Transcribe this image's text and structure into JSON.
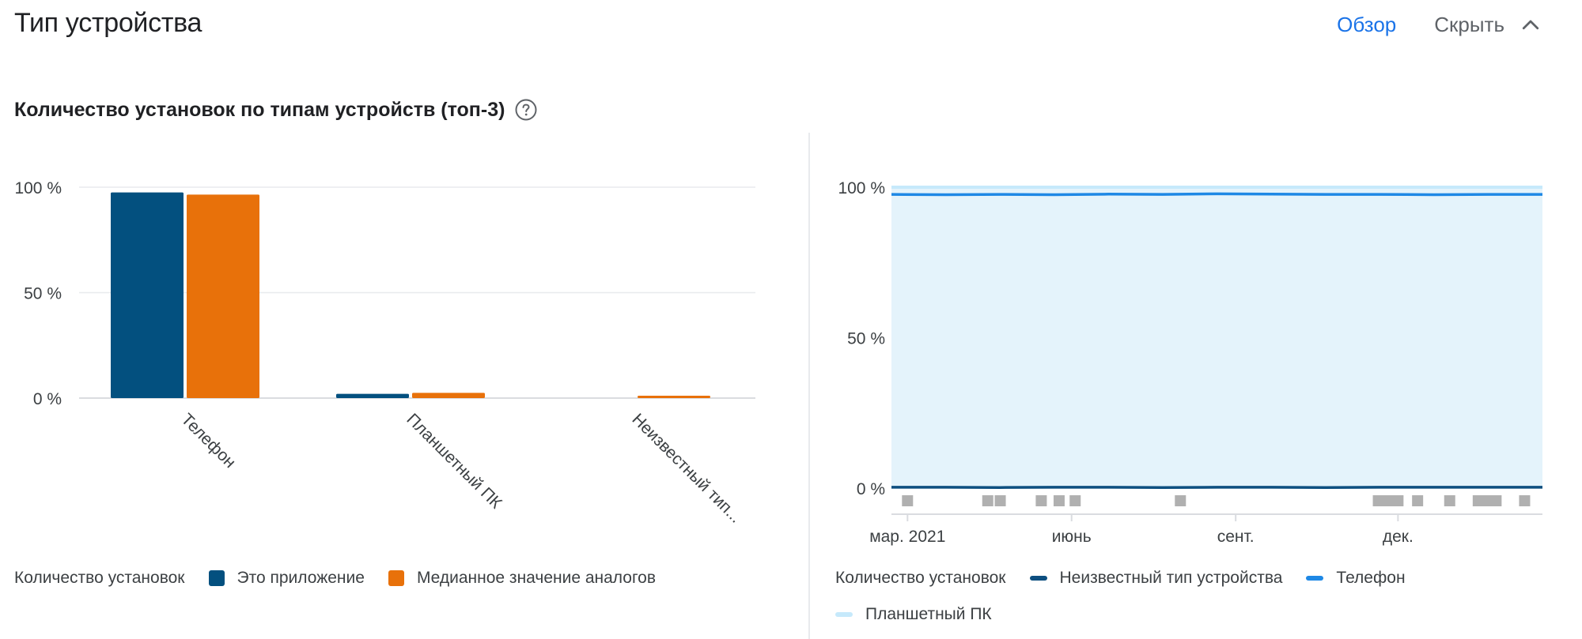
{
  "header": {
    "title": "Тип устройства",
    "overview_link": "Обзор",
    "collapse_label": "Скрыть"
  },
  "subtitle": "Количество установок по типам устройств (топ-3)",
  "colors": {
    "this_app": "#03507f",
    "peer_median": "#e8710a",
    "unknown_device": "#0d4f80",
    "phone": "#1e88e5",
    "tablet": "#c6e9fb",
    "area_fill": "#e4f3fb",
    "link": "#1a73e8",
    "grid": "#e8eaed",
    "marker": "#b0b0b0"
  },
  "legend_left": {
    "title": "Количество установок",
    "items": [
      {
        "label": "Это приложение",
        "color": "#03507f"
      },
      {
        "label": "Медианное значение аналогов",
        "color": "#e8710a"
      }
    ]
  },
  "legend_right": {
    "title": "Количество установок",
    "items": [
      {
        "label": "Неизвестный тип устройства",
        "color": "#0d4f80"
      },
      {
        "label": "Телефон",
        "color": "#1e88e5"
      },
      {
        "label": "Планшетный ПК",
        "color": "#c6e9fb"
      }
    ]
  },
  "chart_data": [
    {
      "type": "bar",
      "categories": [
        "Телефон",
        "Планшетный ПК",
        "Неизвестный тип..."
      ],
      "series": [
        {
          "name": "Это приложение",
          "values": [
            97.5,
            2.0,
            0.0
          ]
        },
        {
          "name": "Медианное значение аналогов",
          "values": [
            96.5,
            2.5,
            0.6
          ]
        }
      ],
      "yticks": [
        "100 %",
        "50 %",
        "0 %"
      ],
      "ylim": [
        0,
        100
      ],
      "grid": true,
      "legend": "bottom-left"
    },
    {
      "type": "area",
      "x_range": [
        "2021-02-20",
        "2022-02-20"
      ],
      "xticks": [
        {
          "date": "2021-03-01",
          "label": "мар. 2021"
        },
        {
          "date": "2021-06-01",
          "label": "июнь"
        },
        {
          "date": "2021-09-01",
          "label": "сент."
        },
        {
          "date": "2021-12-01",
          "label": "дек."
        }
      ],
      "yticks": [
        "100 %",
        "50 %",
        "0 %"
      ],
      "ylim": [
        0,
        100
      ],
      "series": [
        {
          "name": "Неизвестный тип устройства",
          "values": [
            0.3,
            0.3,
            0.2,
            0.3,
            0.3,
            0.2,
            0.3,
            0.3,
            0.2,
            0.3,
            0.3,
            0.3,
            0.3
          ]
        },
        {
          "name": "Телефон",
          "values": [
            97.6,
            97.5,
            97.6,
            97.5,
            97.7,
            97.6,
            97.8,
            97.7,
            97.6,
            97.6,
            97.5,
            97.6,
            97.6
          ]
        },
        {
          "name": "Планшетный ПК",
          "values": [
            100,
            100,
            100,
            100,
            100,
            100,
            100,
            100,
            100,
            100,
            100,
            100,
            100
          ]
        }
      ],
      "event_markers": [
        "2021-03-01",
        "2021-04-15",
        "2021-04-22",
        "2021-05-15",
        "2021-05-25",
        "2021-06-03",
        "2021-08-01",
        "2021-11-20",
        "2021-11-25",
        "2021-12-01",
        "2021-12-12",
        "2021-12-30",
        "2022-01-15",
        "2022-01-20",
        "2022-01-25",
        "2022-02-10"
      ],
      "grid": true,
      "legend": "bottom-left"
    }
  ]
}
